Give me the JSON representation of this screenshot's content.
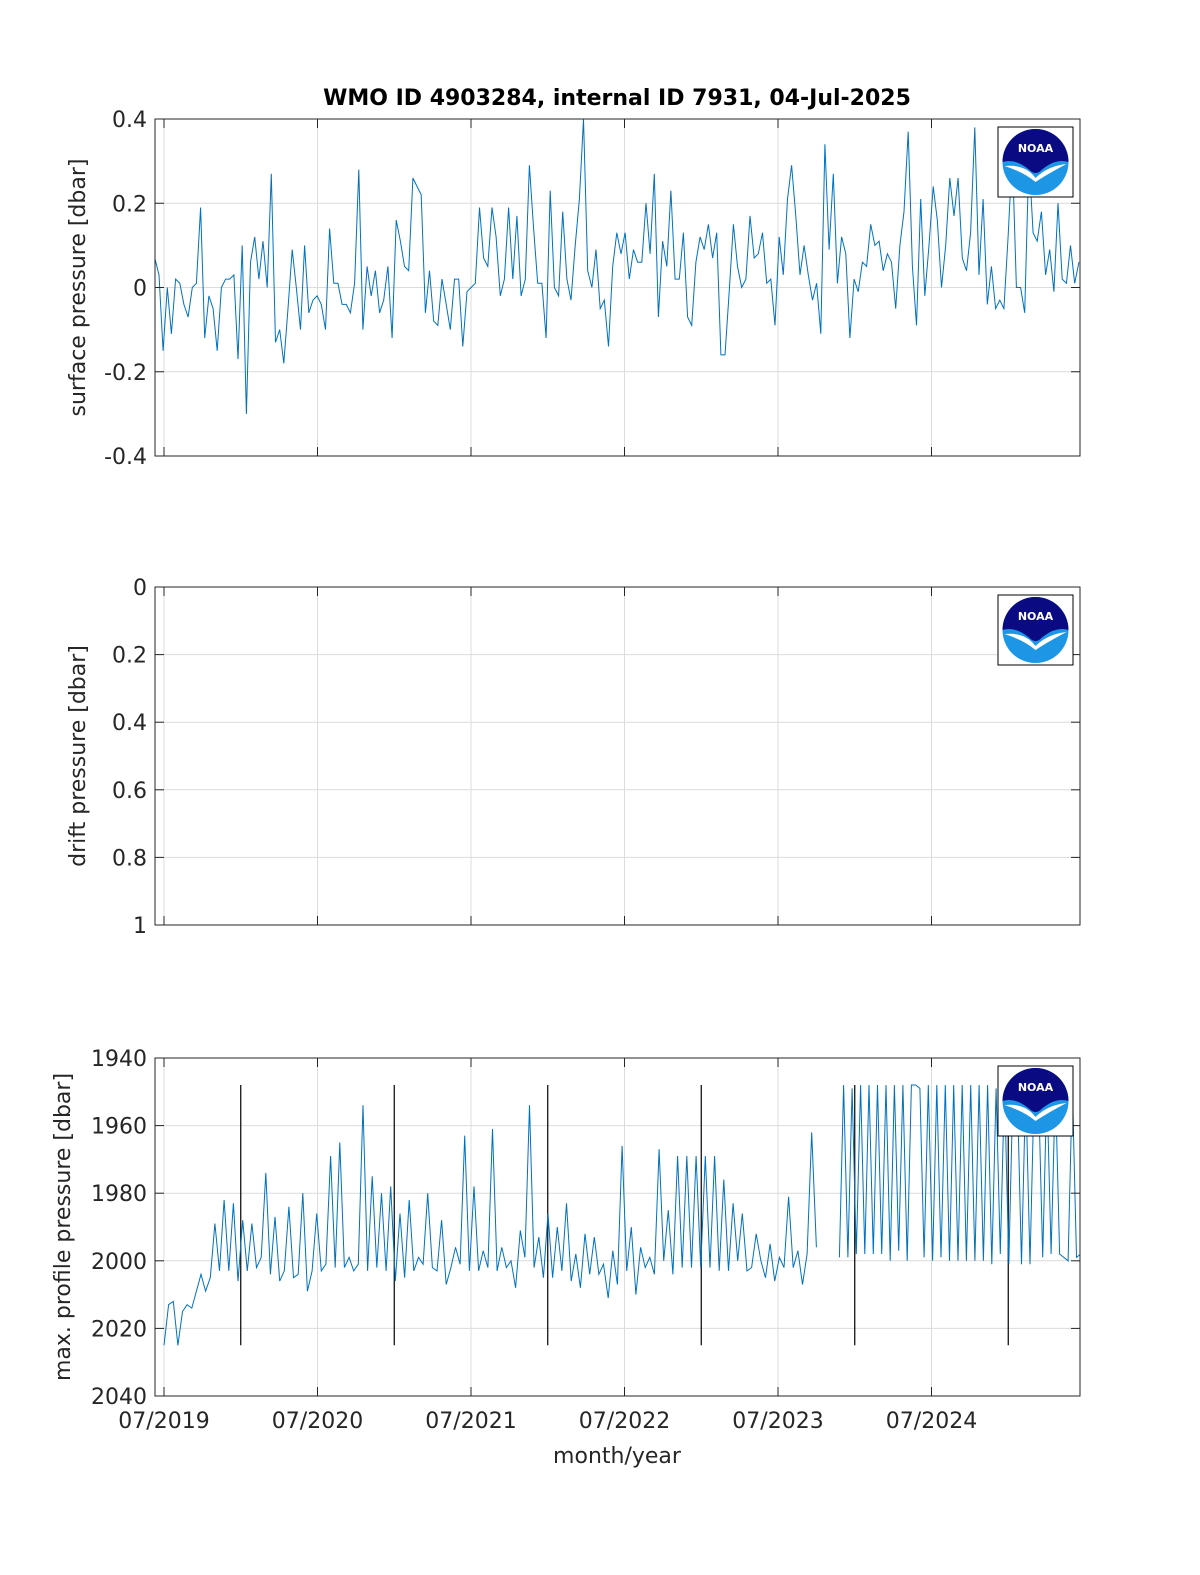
{
  "title": "WMO ID 4903284, internal ID 7931, 04-Jul-2025",
  "logo_text": "NOAA",
  "colors": {
    "series": "#0072BD",
    "marker_line": "#000000",
    "logo_navy": "#0a0a82",
    "logo_blue": "#1e96e6"
  },
  "x_axis": {
    "label": "month/year",
    "ticks": [
      "07/2019",
      "07/2020",
      "07/2021",
      "07/2022",
      "07/2023",
      "07/2024"
    ],
    "range": [
      "2019-07",
      "2025-06"
    ]
  },
  "chart_data": [
    {
      "type": "line",
      "ylabel": "surface pressure [dbar]",
      "ylim": [
        -0.4,
        0.4
      ],
      "yticks": [
        "-0.4",
        "-0.2",
        "0",
        "0.2",
        "0.4"
      ],
      "grid": true,
      "series": [
        {
          "y": [
            0.07,
            0.03,
            -0.15,
            0,
            -0.11,
            0.02,
            0.01,
            -0.04,
            -0.07,
            0,
            0.01,
            0.19,
            -0.12,
            -0.02,
            -0.05,
            -0.15,
            0,
            0.02,
            0.02,
            0.03,
            -0.17,
            0.1,
            -0.3,
            0.06,
            0.12,
            0.02,
            0.11,
            0,
            0.27,
            -0.13,
            -0.1,
            -0.18,
            -0.05,
            0.09,
            0,
            -0.1,
            0.1,
            -0.06,
            -0.03,
            -0.02,
            -0.04,
            -0.1,
            0.14,
            0.01,
            0.01,
            -0.04,
            -0.04,
            -0.06,
            0.01,
            0.28,
            -0.1,
            0.05,
            -0.02,
            0.04,
            -0.06,
            -0.03,
            0.05,
            -0.12,
            0.16,
            0.11,
            0.05,
            0.04,
            0.26,
            0.24,
            0.22,
            -0.06,
            0.04,
            -0.08,
            -0.09,
            0.02,
            -0.04,
            -0.1,
            0.02,
            0.02,
            -0.14,
            -0.01,
            0,
            0.01,
            0.19,
            0.07,
            0.05,
            0.19,
            0.12,
            -0.02,
            0.02,
            0.19,
            0.02,
            0.17,
            -0.02,
            0.02,
            0.29,
            0.14,
            0.01,
            0.01,
            -0.12,
            0.23,
            0,
            -0.02,
            0.18,
            0.02,
            -0.03,
            0.1,
            0.21,
            0.4,
            0.04,
            0,
            0.09,
            -0.05,
            -0.03,
            -0.14,
            0.05,
            0.13,
            0.08,
            0.13,
            0.02,
            0.09,
            0.06,
            0.06,
            0.2,
            0.08,
            0.27,
            -0.07,
            0.11,
            0.05,
            0.23,
            0.02,
            0.02,
            0.13,
            -0.07,
            -0.09,
            0.06,
            0.12,
            0.09,
            0.15,
            0.07,
            0.13,
            -0.16,
            -0.16,
            -0.01,
            0.15,
            0.05,
            0,
            0.02,
            0.17,
            0.07,
            0.08,
            0.13,
            0.01,
            0.02,
            -0.09,
            0.12,
            0.03,
            0.21,
            0.29,
            0.17,
            0.03,
            0.1,
            0.03,
            -0.03,
            0.01,
            -0.11,
            0.34,
            0.09,
            0.27,
            0.01,
            0.12,
            0.08,
            -0.12,
            0.02,
            -0.01,
            0.06,
            0.05,
            0.15,
            0.1,
            0.11,
            0.04,
            0.08,
            0.06,
            -0.05,
            0.1,
            0.18,
            0.37,
            0.05,
            -0.09,
            0.21,
            -0.02,
            0.1,
            0.24,
            0.16,
            0,
            0.1,
            0.26,
            0.17,
            0.26,
            0.07,
            0.04,
            0.13,
            0.38,
            0.03,
            0.21,
            -0.04,
            0.05,
            -0.05,
            -0.03,
            -0.05,
            0.12,
            0.32,
            0,
            0,
            -0.06,
            0.31,
            0.13,
            0.11,
            0.18,
            0.03,
            0.09,
            -0.01,
            0.2,
            0.02,
            0.01,
            0.1,
            0.01,
            0.06
          ]
        }
      ]
    },
    {
      "type": "line",
      "ylabel": "drift pressure [dbar]",
      "ylim": [
        0,
        1
      ],
      "yticks": [
        "0",
        "0.2",
        "0.4",
        "0.6",
        "0.8",
        "1"
      ],
      "y_reversed": true,
      "grid": true,
      "series": []
    },
    {
      "type": "line",
      "ylabel": "max. profile pressure [dbar]",
      "ylim": [
        1940,
        2040
      ],
      "yticks": [
        "1940",
        "1960",
        "1980",
        "2000",
        "2020",
        "2040"
      ],
      "y_reversed": true,
      "grid": true,
      "year_markers": {
        "x": [
          0.5,
          1.5,
          2.5,
          3.5,
          4.5,
          5.5
        ],
        "from": 1948,
        "to": 2025
      },
      "series": [
        {
          "y": [
            2025,
            2013,
            2012,
            2025,
            2015,
            2013,
            2014,
            2009,
            2004,
            2009,
            2005,
            1989,
            2003,
            1982,
            2003,
            1983,
            2006,
            1988,
            2003,
            1989,
            2002,
            1999,
            1974,
            2004,
            1987,
            2006,
            2003,
            1984,
            2005,
            2004,
            1980,
            2009,
            2003,
            1986,
            2003,
            2001,
            1969,
            2002,
            1965,
            2002,
            1999,
            2003,
            2001,
            1954,
            2003,
            1975,
            2002,
            1980,
            2003,
            1978,
            2006,
            1986,
            2005,
            1982,
            2003,
            1999,
            2001,
            1980,
            2002,
            2003,
            1988,
            2007,
            2002,
            1996,
            2001,
            1963,
            2003,
            1978,
            2003,
            1997,
            2002,
            1961,
            2003,
            1996,
            2002,
            2000,
            2008,
            1991,
            1999,
            1954,
            2002,
            1993,
            2005,
            1986,
            2005,
            1990,
            2003,
            1983,
            2006,
            1998,
            2008,
            1992,
            2004,
            1993,
            2004,
            2001,
            2011,
            1997,
            2007,
            1966,
            2003,
            1990,
            2010,
            1996,
            2002,
            1999,
            2004,
            1967,
            2000,
            1985,
            2004,
            1969,
            2002,
            1969,
            2002,
            1969,
            2002,
            1969,
            2002,
            1969,
            2003,
            1976,
            2003,
            1983,
            2000,
            1986,
            2003,
            2002,
            1992,
            2000,
            2005,
            1995,
            2006,
            1999,
            2002,
            1981,
            2002,
            1997,
            2007,
            1998,
            1962,
            1996
          ]
        },
        {
          "y": [
            1999,
            1948,
            1999,
            1949,
            1998,
            1948,
            1998,
            1948,
            1998,
            1948,
            1998,
            1948,
            2000,
            1948,
            1997,
            1948,
            2000,
            1948,
            1948,
            1949,
            1999,
            1948,
            2000,
            1948,
            1999,
            1948,
            2000,
            1948,
            2000,
            1948,
            2000,
            1948,
            2000,
            1948,
            2000,
            1948,
            2001,
            1949,
            1998,
            1948,
            2001,
            1948,
            1948,
            2001,
            1948,
            2001,
            1948,
            1948,
            1999,
            1948,
            1998,
            1948,
            1998,
            1999,
            2000,
            1948,
            1999,
            1998,
            1948
          ]
        }
      ],
      "series_x_start": [
        0,
        4.4
      ],
      "series_x_end": [
        4.25,
        6.0
      ]
    }
  ]
}
